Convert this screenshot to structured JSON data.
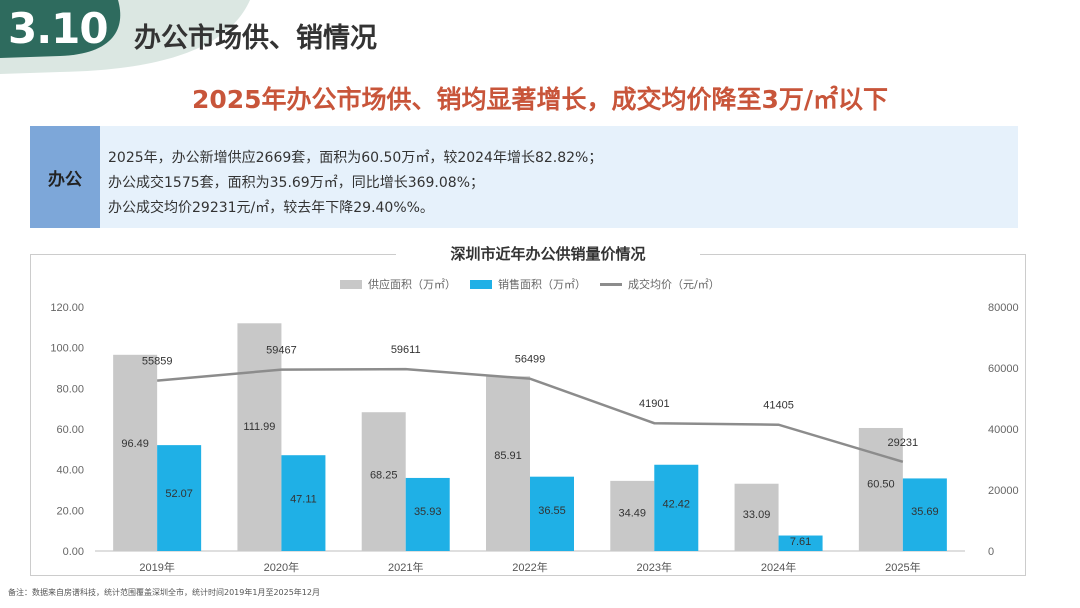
{
  "section": {
    "number": "3.10",
    "title": "办公市场供、销情况"
  },
  "headline": "2025年办公市场供、销均显著增长，成交均价降至3万/㎡以下",
  "info": {
    "label": "办公",
    "lines": [
      "2025年，办公新增供应2669套，面积为60.50万㎡，较2024年增长82.82%；",
      "办公成交1575套，面积为35.69万㎡，同比增长369.08%；",
      "办公成交均价29231元/㎡，较去年下降29.40%%。"
    ]
  },
  "legend": {
    "supply": "供应面积（万㎡）",
    "sales": "销售面积（万㎡）",
    "price": "成交均价（元/㎡）"
  },
  "chart_data": {
    "type": "bar",
    "title": "深圳市近年办公供销量价情况",
    "categories": [
      "2019年",
      "2020年",
      "2021年",
      "2022年",
      "2023年",
      "2024年",
      "2025年"
    ],
    "series": [
      {
        "name": "供应面积（万㎡）",
        "type": "bar",
        "axis": "left",
        "color": "#c8c8c8",
        "values": [
          96.49,
          111.99,
          68.25,
          85.91,
          34.49,
          33.09,
          60.5
        ],
        "labels": [
          "96.49",
          "111.99",
          "68.25",
          "85.91",
          "34.49",
          "33.09",
          "60.50"
        ]
      },
      {
        "name": "销售面积（万㎡）",
        "type": "bar",
        "axis": "left",
        "color": "#1fb0e6",
        "values": [
          52.07,
          47.11,
          35.93,
          36.55,
          42.42,
          7.61,
          35.69
        ],
        "labels": [
          "52.07",
          "47.11",
          "35.93",
          "36.55",
          "42.42",
          "7.61",
          "35.69"
        ]
      },
      {
        "name": "成交均价（元/㎡）",
        "type": "line",
        "axis": "right",
        "color": "#8c8c8c",
        "values": [
          55859,
          59467,
          59611,
          56499,
          41901,
          41405,
          29231
        ],
        "labels": [
          "55859",
          "59467",
          "59611",
          "56499",
          "41901",
          "41405",
          "29231"
        ]
      }
    ],
    "ylim": [
      0,
      120
    ],
    "y_ticks": [
      "0.00",
      "20.00",
      "40.00",
      "60.00",
      "80.00",
      "100.00",
      "120.00"
    ],
    "y2lim": [
      0,
      80000
    ],
    "y2_ticks": [
      "0",
      "20000",
      "40000",
      "60000",
      "80000"
    ],
    "xlabel": "",
    "ylabel": "",
    "grid": false
  },
  "footnote": "备注：数据来自房谱科技，统计范围覆盖深圳全市，统计时间2019年1月至2025年12月",
  "colors": {
    "accent": "#c8553a",
    "badge": "#2e6b5e",
    "info_label": "#7da7d9",
    "info_bg": "#e6f1fb"
  }
}
